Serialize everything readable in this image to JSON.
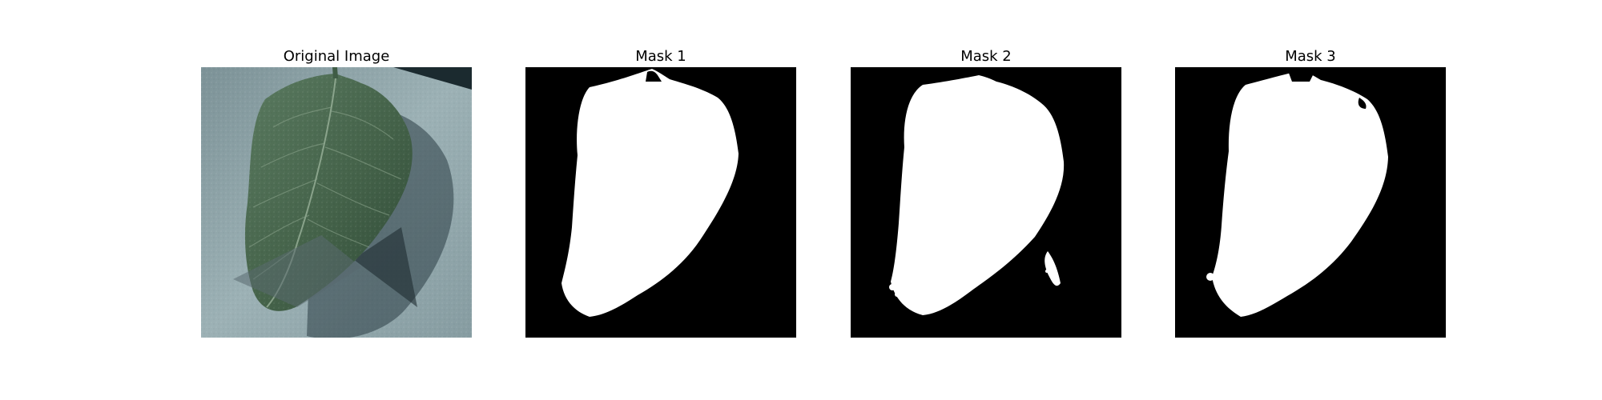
{
  "figure": {
    "panels": [
      {
        "title": "Original Image",
        "kind": "photo"
      },
      {
        "title": "Mask 1",
        "kind": "mask"
      },
      {
        "title": "Mask 2",
        "kind": "mask"
      },
      {
        "title": "Mask 3",
        "kind": "mask"
      }
    ],
    "colors": {
      "mask_background": "#000000",
      "mask_foreground": "#ffffff",
      "leaf_dark": "#2f4a37",
      "leaf_light": "#6f8f72",
      "surface": "#8fa3a8"
    }
  }
}
